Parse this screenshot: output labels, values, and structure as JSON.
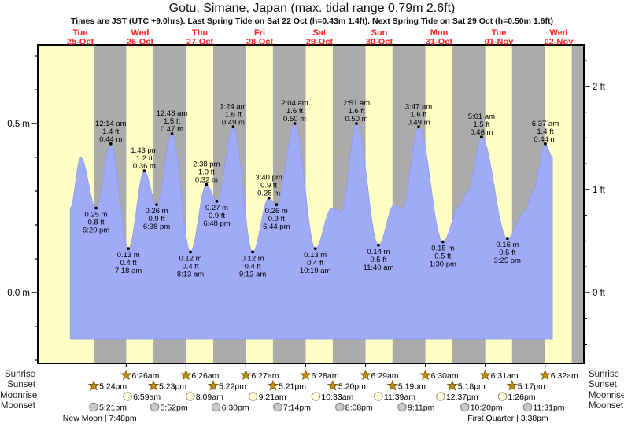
{
  "page": {
    "title": "Gotu, Simane, Japan (max. tidal range 0.79m 2.6ft)",
    "subtitle": "Times are JST (UTC +9.0hrs). Last Spring Tide on Sat 22 Oct (h=0.43m 1.4ft). Next Spring Tide on Sat 29 Oct (h=0.50m 1.6ft)"
  },
  "row_labels": {
    "sunrise": "Sunrise",
    "sunset": "Sunset",
    "moonrise": "Moonrise",
    "moonset": "Moonset"
  },
  "day_labels": [
    {
      "weekday": "Tue",
      "date": "25-Oct"
    },
    {
      "weekday": "Wed",
      "date": "26-Oct"
    },
    {
      "weekday": "Thu",
      "date": "27-Oct"
    },
    {
      "weekday": "Fri",
      "date": "28-Oct"
    },
    {
      "weekday": "Sat",
      "date": "29-Oct"
    },
    {
      "weekday": "Sun",
      "date": "30-Oct"
    },
    {
      "weekday": "Mon",
      "date": "31-Oct"
    },
    {
      "weekday": "Tue",
      "date": "01-Nov"
    },
    {
      "weekday": "Wed",
      "date": "02-Nov"
    }
  ],
  "axes": {
    "left": {
      "unit": "m",
      "major": [
        {
          "label": "0.5 m",
          "value": 0.5
        },
        {
          "label": "0.0 m",
          "value": 0.0
        }
      ],
      "minor_values": [
        0.7,
        0.6,
        0.4,
        0.3,
        0.2,
        0.1,
        -0.1,
        -0.2
      ]
    },
    "right": {
      "unit": "ft",
      "major": [
        {
          "label": "2 ft",
          "value": 2
        },
        {
          "label": "1 ft",
          "value": 1
        },
        {
          "label": "0 ft",
          "value": 0
        }
      ],
      "minor_values": [
        2.25,
        1.75,
        1.5,
        1.25,
        0.75,
        0.5,
        0.25,
        -0.25,
        -0.5
      ]
    }
  },
  "chart_data": {
    "type": "area",
    "title": "Gotu, Simane, Japan (max. tidal range 0.79m 2.6ft)",
    "ylabel_left": "m",
    "ylabel_right": "ft",
    "ylim_m": [
      -0.21,
      0.73
    ],
    "x_days": [
      "25-Oct",
      "26-Oct",
      "27-Oct",
      "28-Oct",
      "29-Oct",
      "30-Oct",
      "31-Oct",
      "01-Nov",
      "02-Nov"
    ],
    "tide_events": [
      {
        "day": 0,
        "time24": "08:00",
        "h": 0.25,
        "kind": "edge-start"
      },
      {
        "day": 0,
        "time24": "12:10",
        "h": 0.4,
        "kind": "high"
      },
      {
        "day": 0,
        "time24": "18:20",
        "h": 0.25,
        "kind": "low",
        "label": [
          "0.25 m",
          "0.8 ft",
          "6:20 pm"
        ]
      },
      {
        "day": 1,
        "time24": "00:14",
        "h": 0.44,
        "kind": "high",
        "label": [
          "12:14 am",
          "1.4 ft",
          "0.44 m"
        ]
      },
      {
        "day": 1,
        "time24": "07:18",
        "h": 0.13,
        "kind": "low",
        "label": [
          "0.13 m",
          "0.4 ft",
          "7:18 am"
        ]
      },
      {
        "day": 1,
        "time24": "13:43",
        "h": 0.36,
        "kind": "high",
        "label": [
          "1:43 pm",
          "1.2 ft",
          "0.36 m"
        ]
      },
      {
        "day": 1,
        "time24": "18:38",
        "h": 0.26,
        "kind": "low",
        "label": [
          "0.26 m",
          "0.9 ft",
          "6:38 pm"
        ]
      },
      {
        "day": 2,
        "time24": "00:48",
        "h": 0.47,
        "kind": "high",
        "label": [
          "12:48 am",
          "1.5 ft",
          "0.47 m"
        ]
      },
      {
        "day": 2,
        "time24": "08:13",
        "h": 0.12,
        "kind": "low",
        "label": [
          "0.12 m",
          "0.4 ft",
          "8:13 am"
        ]
      },
      {
        "day": 2,
        "time24": "14:38",
        "h": 0.32,
        "kind": "high",
        "label": [
          "2:38 pm",
          "1.0 ft",
          "0.32 m"
        ]
      },
      {
        "day": 2,
        "time24": "18:48",
        "h": 0.27,
        "kind": "low",
        "label": [
          "0.27 m",
          "0.9 ft",
          "6:48 pm"
        ]
      },
      {
        "day": 3,
        "time24": "01:24",
        "h": 0.49,
        "kind": "high",
        "label": [
          "1:24 am",
          "1.6 ft",
          "0.49 m"
        ]
      },
      {
        "day": 3,
        "time24": "09:12",
        "h": 0.12,
        "kind": "low",
        "label": [
          "0.12 m",
          "0.4 ft",
          "9:12 am"
        ]
      },
      {
        "day": 3,
        "time24": "15:40",
        "h": 0.28,
        "kind": "high",
        "label": [
          "3:40 pm",
          "0.9 ft",
          "0.28 m"
        ]
      },
      {
        "day": 3,
        "time24": "18:44",
        "h": 0.26,
        "kind": "low",
        "label": [
          "0.26 m",
          "0.9 ft",
          "6:44 pm"
        ]
      },
      {
        "day": 4,
        "time24": "02:04",
        "h": 0.5,
        "kind": "high",
        "label": [
          "2:04 am",
          "1.6 ft",
          "0.50 m"
        ]
      },
      {
        "day": 4,
        "time24": "10:19",
        "h": 0.13,
        "kind": "low",
        "label": [
          "0.13 m",
          "0.4 ft",
          "10:19 am"
        ]
      },
      {
        "day": 4,
        "time24": "17:00",
        "h": 0.25,
        "kind": "high"
      },
      {
        "day": 4,
        "time24": "20:45",
        "h": 0.24,
        "kind": "low"
      },
      {
        "day": 5,
        "time24": "02:51",
        "h": 0.5,
        "kind": "high",
        "label": [
          "2:51 am",
          "1.6 ft",
          "0.50 m"
        ]
      },
      {
        "day": 5,
        "time24": "11:40",
        "h": 0.14,
        "kind": "low",
        "label": [
          "0.14 m",
          "0.5 ft",
          "11:40 am"
        ]
      },
      {
        "day": 5,
        "time24": "18:00",
        "h": 0.26,
        "kind": "high"
      },
      {
        "day": 5,
        "time24": "21:15",
        "h": 0.25,
        "kind": "low"
      },
      {
        "day": 6,
        "time24": "03:47",
        "h": 0.49,
        "kind": "high",
        "label": [
          "3:47 am",
          "1.6 ft",
          "0.49 m"
        ]
      },
      {
        "day": 6,
        "time24": "13:30",
        "h": 0.15,
        "kind": "low",
        "label": [
          "0.15 m",
          "0.5 ft",
          "1:30 pm"
        ]
      },
      {
        "day": 6,
        "time24": "20:30",
        "h": 0.26,
        "kind": "knee"
      },
      {
        "day": 6,
        "time24": "23:30",
        "h": 0.3,
        "kind": "knee"
      },
      {
        "day": 7,
        "time24": "05:01",
        "h": 0.46,
        "kind": "high",
        "label": [
          "5:01 am",
          "1.5 ft",
          "0.46 m"
        ]
      },
      {
        "day": 7,
        "time24": "15:25",
        "h": 0.16,
        "kind": "low",
        "label": [
          "0.16 m",
          "0.5 ft",
          "3:25 pm"
        ]
      },
      {
        "day": 7,
        "time24": "22:30",
        "h": 0.24,
        "kind": "knee"
      },
      {
        "day": 8,
        "time24": "01:30",
        "h": 0.3,
        "kind": "knee"
      },
      {
        "day": 8,
        "time24": "06:37",
        "h": 0.44,
        "kind": "high",
        "label": [
          "6:37 am",
          "1.4 ft",
          "0.44 m"
        ]
      },
      {
        "day": 8,
        "time24": "09:30",
        "h": 0.4,
        "kind": "edge-end"
      }
    ],
    "night_bands": [
      {
        "from": [
          0,
          "17:24"
        ],
        "to": [
          1,
          "06:26"
        ]
      },
      {
        "from": [
          1,
          "17:23"
        ],
        "to": [
          2,
          "06:26"
        ]
      },
      {
        "from": [
          2,
          "17:22"
        ],
        "to": [
          3,
          "06:27"
        ]
      },
      {
        "from": [
          3,
          "17:21"
        ],
        "to": [
          4,
          "06:28"
        ]
      },
      {
        "from": [
          4,
          "17:20"
        ],
        "to": [
          5,
          "06:29"
        ]
      },
      {
        "from": [
          5,
          "17:19"
        ],
        "to": [
          6,
          "06:30"
        ]
      },
      {
        "from": [
          6,
          "17:18"
        ],
        "to": [
          7,
          "06:31"
        ]
      },
      {
        "from": [
          7,
          "17:17"
        ],
        "to": [
          8,
          "06:32"
        ]
      },
      {
        "from": [
          8,
          "17:16"
        ],
        "to": [
          9,
          "02:00"
        ]
      }
    ],
    "sun_moon": {
      "sunrise": [
        {
          "day": 1,
          "time": "6:26am"
        },
        {
          "day": 2,
          "time": "6:26am"
        },
        {
          "day": 3,
          "time": "6:27am"
        },
        {
          "day": 4,
          "time": "6:28am"
        },
        {
          "day": 5,
          "time": "6:29am"
        },
        {
          "day": 6,
          "time": "6:30am"
        },
        {
          "day": 7,
          "time": "6:31am"
        },
        {
          "day": 8,
          "time": "6:32am"
        }
      ],
      "sunset": [
        {
          "day": 0,
          "time": "5:24pm"
        },
        {
          "day": 1,
          "time": "5:23pm"
        },
        {
          "day": 2,
          "time": "5:22pm"
        },
        {
          "day": 3,
          "time": "5:21pm"
        },
        {
          "day": 4,
          "time": "5:20pm"
        },
        {
          "day": 5,
          "time": "5:19pm"
        },
        {
          "day": 6,
          "time": "5:18pm"
        },
        {
          "day": 7,
          "time": "5:17pm"
        }
      ],
      "moonrise": [
        {
          "day": 1,
          "time": "6:59am"
        },
        {
          "day": 2,
          "time": "8:09am"
        },
        {
          "day": 3,
          "time": "9:21am"
        },
        {
          "day": 4,
          "time": "10:33am"
        },
        {
          "day": 5,
          "time": "11:39am"
        },
        {
          "day": 6,
          "time": "12:37pm"
        },
        {
          "day": 7,
          "time": "1:26pm"
        }
      ],
      "moonset": [
        {
          "day": 0,
          "time": "5:21pm"
        },
        {
          "day": 1,
          "time": "5:52pm"
        },
        {
          "day": 2,
          "time": "6:30pm"
        },
        {
          "day": 3,
          "time": "7:14pm"
        },
        {
          "day": 4,
          "time": "8:08pm"
        },
        {
          "day": 5,
          "time": "9:11pm"
        },
        {
          "day": 6,
          "time": "10:20pm"
        },
        {
          "day": 7,
          "time": "11:31pm"
        }
      ]
    },
    "moon_phases": [
      {
        "name": "New Moon",
        "time": "7:48pm",
        "day": 0
      },
      {
        "name": "First Quarter",
        "time": "3:38pm",
        "day": 7
      }
    ]
  },
  "colors": {
    "day_band": "#FFFFC5",
    "night_band": "#ABABAB",
    "tide_fill": "#A0ABF8",
    "tide_edge": "#8C99EE",
    "day_label": "#FF2222",
    "star_fill": "#C6920E",
    "star_stroke": "#7E5D08",
    "moonrise_fill": "#FFFFDE",
    "moonrise_stroke": "#9C9C85",
    "moonset_fill": "#C9C9C9",
    "moonset_stroke": "#8A8A8A",
    "frame": "#000000",
    "annotation_text": "#000000"
  }
}
